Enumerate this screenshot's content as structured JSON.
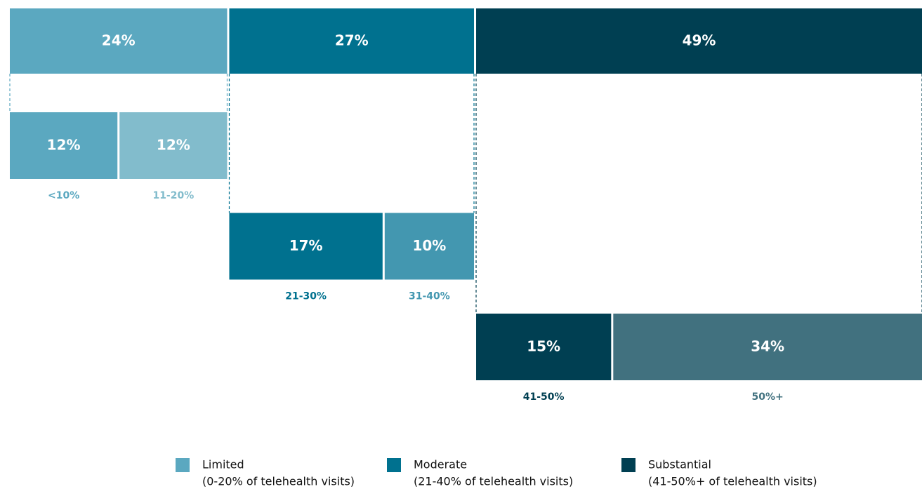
{
  "chart_data": {
    "type": "breakdown",
    "categories": [
      "Limited",
      "Moderate",
      "Substantial"
    ],
    "descriptions": [
      "(0-20% of telehealth visits)",
      "(21-40% of telehealth visits)",
      "(41-50%+ of telehealth visits)"
    ],
    "colors": [
      "#5ba8c0",
      "#00718f",
      "#003f52"
    ],
    "values": [
      24,
      27,
      49
    ],
    "value_labels": [
      "24%",
      "27%",
      "49%"
    ],
    "breakdown": [
      {
        "categories": [
          "<10%",
          "11-20%"
        ],
        "values": [
          12,
          12
        ],
        "value_labels": [
          "12%",
          "12%"
        ],
        "colors": [
          "#5ba8c0",
          "#82bccc"
        ]
      },
      {
        "categories": [
          "21-30%",
          "31-40%"
        ],
        "values": [
          17,
          10
        ],
        "value_labels": [
          "17%",
          "10%"
        ],
        "colors": [
          "#00718f",
          "#4397b0"
        ]
      },
      {
        "categories": [
          "41-50%",
          "50%+"
        ],
        "values": [
          15,
          34
        ],
        "value_labels": [
          "15%",
          "34%"
        ],
        "colors": [
          "#003f52",
          "#41717f"
        ]
      }
    ]
  }
}
